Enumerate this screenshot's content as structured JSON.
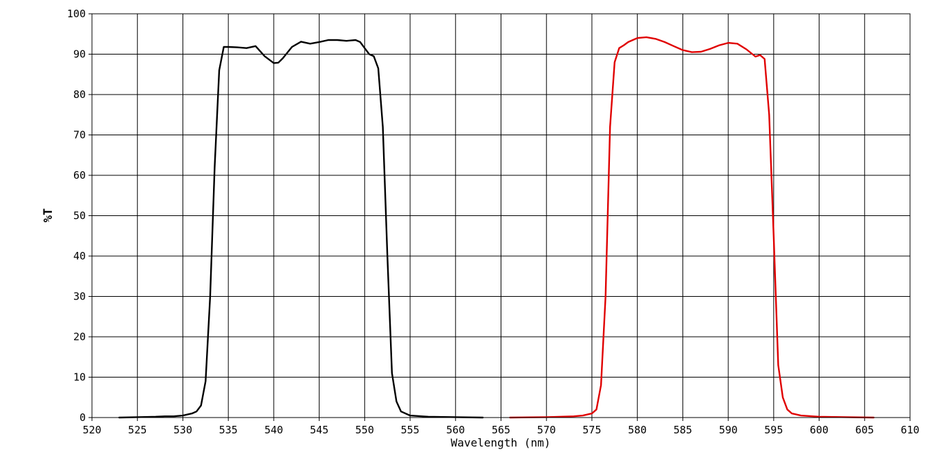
{
  "chart_data": {
    "type": "line",
    "title": "",
    "xlabel": "Wavelength (nm)",
    "ylabel": "%T",
    "xlim": [
      520,
      610
    ],
    "ylim": [
      0,
      100
    ],
    "xticks": [
      520,
      525,
      530,
      535,
      540,
      545,
      550,
      555,
      560,
      565,
      570,
      575,
      580,
      585,
      590,
      595,
      600,
      605,
      610
    ],
    "yticks": [
      0,
      10,
      20,
      30,
      40,
      50,
      60,
      70,
      80,
      90,
      100
    ],
    "grid": true,
    "series": [
      {
        "color": "#000000",
        "x": [
          523,
          525,
          527,
          528,
          529,
          530,
          531,
          531.5,
          532,
          532.5,
          533,
          533.5,
          534,
          534.5,
          535,
          536,
          537,
          538,
          539,
          540,
          540.5,
          541,
          542,
          543,
          544,
          545,
          546,
          547,
          548,
          549,
          549.5,
          550,
          550.5,
          551,
          551.5,
          552,
          552.5,
          553,
          553.5,
          554,
          555,
          557,
          560,
          563
        ],
        "y": [
          0,
          0.1,
          0.2,
          0.3,
          0.3,
          0.5,
          1,
          1.5,
          3,
          9,
          30,
          62,
          86,
          91.8,
          91.8,
          91.7,
          91.5,
          92,
          89.5,
          87.8,
          87.9,
          89,
          91.8,
          93.1,
          92.6,
          93,
          93.5,
          93.5,
          93.3,
          93.5,
          93,
          91.5,
          90,
          89.5,
          86.5,
          72,
          40,
          11,
          4,
          1.5,
          0.5,
          0.2,
          0.1,
          0
        ]
      },
      {
        "color": "#e00000",
        "x": [
          566,
          570,
          573,
          574,
          575,
          575.5,
          576,
          576.5,
          577,
          577.5,
          578,
          578.5,
          579,
          580,
          581,
          582,
          583,
          584,
          585,
          586,
          587,
          588,
          589,
          590,
          591,
          592,
          593,
          593.5,
          594,
          594.5,
          595,
          595.5,
          596,
          596.5,
          597,
          598,
          600,
          603,
          606
        ],
        "y": [
          0,
          0.1,
          0.3,
          0.5,
          1,
          2,
          8,
          30,
          72,
          88,
          91.5,
          92.2,
          93,
          94,
          94.2,
          93.8,
          93,
          92,
          91,
          90.5,
          90.6,
          91.3,
          92.2,
          92.8,
          92.6,
          91.2,
          89.4,
          89.8,
          88.8,
          75,
          45,
          13,
          5,
          2,
          1,
          0.5,
          0.2,
          0.1,
          0
        ]
      }
    ]
  }
}
